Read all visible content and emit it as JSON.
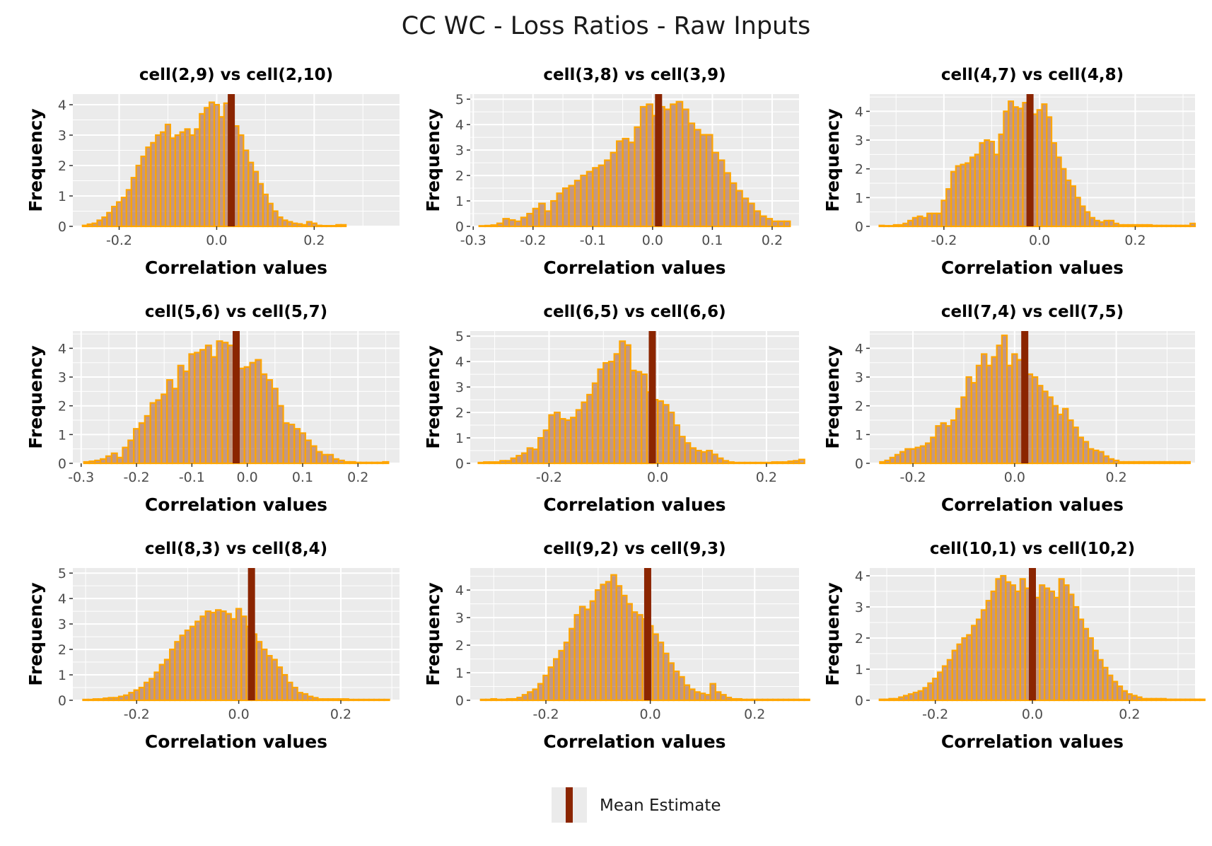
{
  "title": "CC WC - Loss Ratios - Raw Inputs",
  "legend": {
    "label": "Mean Estimate",
    "color": "#8b2500",
    "position": "bottom"
  },
  "colors": {
    "bar_fill": "#a0522d",
    "bar_outline": "#ffa500",
    "mean_line": "#8b2500",
    "panel_bg": "#ebebeb",
    "grid": "#ffffff"
  },
  "chart_data": [
    {
      "type": "bar",
      "title": "cell(2,9) vs cell(2,10)",
      "xlabel": "Correlation values",
      "ylabel": "Frequency",
      "xlim": [
        -0.295,
        0.375
      ],
      "ylim": [
        0,
        4.35
      ],
      "xticks": [
        -0.2,
        0.0,
        0.2
      ],
      "yticks": [
        0,
        1,
        2,
        3,
        4
      ],
      "bin_start": -0.275,
      "bin_width": 0.01,
      "counts": [
        0.03,
        0.07,
        0.1,
        0.2,
        0.3,
        0.45,
        0.65,
        0.8,
        0.95,
        1.2,
        1.6,
        2.0,
        2.3,
        2.6,
        2.75,
        3.0,
        3.1,
        3.35,
        2.9,
        3.0,
        3.1,
        3.2,
        3.0,
        3.2,
        3.7,
        3.9,
        4.08,
        4.0,
        3.6,
        4.05,
        3.65,
        3.3,
        3.0,
        2.5,
        2.1,
        1.8,
        1.4,
        1.05,
        0.75,
        0.5,
        0.3,
        0.2,
        0.15,
        0.1,
        0.08,
        0.05,
        0.15,
        0.1,
        0.03,
        0.02,
        0.02,
        0.02,
        0.05,
        0.05
      ],
      "mean": 0.03
    },
    {
      "type": "bar",
      "title": "cell(3,8) vs cell(3,9)",
      "xlabel": "Correlation values",
      "ylabel": "Frequency",
      "xlim": [
        -0.305,
        0.245
      ],
      "ylim": [
        0,
        5.2
      ],
      "xticks": [
        -0.3,
        -0.2,
        -0.1,
        0.0,
        0.1,
        0.2
      ],
      "yticks": [
        0,
        1,
        2,
        3,
        4,
        5
      ],
      "bin_start": -0.29,
      "bin_width": 0.01,
      "counts": [
        0.02,
        0.03,
        0.05,
        0.12,
        0.3,
        0.25,
        0.2,
        0.35,
        0.5,
        0.7,
        0.9,
        0.6,
        1.0,
        1.3,
        1.5,
        1.6,
        1.8,
        2.0,
        2.15,
        2.3,
        2.4,
        2.6,
        2.9,
        3.35,
        3.45,
        3.3,
        3.9,
        4.7,
        4.8,
        4.35,
        4.7,
        4.6,
        4.8,
        4.9,
        4.6,
        4.05,
        3.8,
        3.6,
        3.6,
        2.9,
        2.6,
        2.1,
        1.7,
        1.4,
        1.1,
        0.9,
        0.6,
        0.4,
        0.3,
        0.2,
        0.2,
        0.2
      ],
      "mean": 0.01
    },
    {
      "type": "bar",
      "title": "cell(4,7) vs cell(4,8)",
      "xlabel": "Correlation values",
      "ylabel": "Frequency",
      "xlim": [
        -0.355,
        0.325
      ],
      "ylim": [
        0,
        4.6
      ],
      "xticks": [
        -0.2,
        0.0,
        0.2
      ],
      "yticks": [
        0,
        1,
        2,
        3,
        4
      ],
      "bin_start": -0.335,
      "bin_width": 0.01,
      "counts": [
        0.03,
        0.02,
        0.02,
        0.05,
        0.05,
        0.1,
        0.2,
        0.3,
        0.35,
        0.3,
        0.45,
        0.45,
        0.45,
        0.9,
        1.3,
        1.9,
        2.1,
        2.15,
        2.2,
        2.4,
        2.5,
        2.9,
        3.0,
        2.95,
        2.5,
        3.2,
        4.0,
        4.35,
        4.15,
        4.1,
        4.3,
        3.9,
        3.9,
        4.05,
        4.25,
        3.8,
        2.9,
        2.4,
        2.0,
        1.6,
        1.4,
        1.0,
        0.7,
        0.5,
        0.3,
        0.2,
        0.15,
        0.2,
        0.2,
        0.1,
        0.05,
        0.05,
        0.05,
        0.05,
        0.05,
        0.05,
        0.05,
        0.03,
        0.03,
        0.03,
        0.03,
        0.03,
        0.03,
        0.03,
        0.03,
        0.1
      ],
      "mean": -0.02
    },
    {
      "type": "bar",
      "title": "cell(5,6) vs cell(5,7)",
      "xlabel": "Correlation values",
      "ylabel": "Frequency",
      "xlim": [
        -0.315,
        0.275
      ],
      "ylim": [
        0,
        4.6
      ],
      "xticks": [
        -0.3,
        -0.2,
        -0.1,
        0.0,
        0.1,
        0.2
      ],
      "yticks": [
        0,
        1,
        2,
        3,
        4
      ],
      "bin_start": -0.295,
      "bin_width": 0.01,
      "counts": [
        0.05,
        0.07,
        0.1,
        0.15,
        0.25,
        0.35,
        0.2,
        0.55,
        0.8,
        1.2,
        1.4,
        1.65,
        2.1,
        2.2,
        2.4,
        2.9,
        2.6,
        3.4,
        3.2,
        3.8,
        3.85,
        3.95,
        4.1,
        3.7,
        4.25,
        4.2,
        4.1,
        3.55,
        3.3,
        3.35,
        3.5,
        3.6,
        3.1,
        2.9,
        2.6,
        2.0,
        1.4,
        1.35,
        1.2,
        1.05,
        0.8,
        0.6,
        0.4,
        0.3,
        0.3,
        0.15,
        0.1,
        0.05,
        0.05,
        0.03,
        0.03,
        0.03,
        0.03,
        0.03,
        0.05
      ],
      "mean": -0.02
    },
    {
      "type": "bar",
      "title": "cell(6,5) vs cell(6,6)",
      "xlabel": "Correlation values",
      "ylabel": "Frequency",
      "xlim": [
        -0.345,
        0.26
      ],
      "ylim": [
        0,
        5.2
      ],
      "xticks": [
        -0.2,
        0.0,
        0.2
      ],
      "yticks": [
        0,
        1,
        2,
        3,
        4,
        5
      ],
      "bin_start": -0.33,
      "bin_width": 0.01,
      "counts": [
        0.03,
        0.05,
        0.05,
        0.05,
        0.1,
        0.1,
        0.2,
        0.3,
        0.4,
        0.6,
        0.55,
        1.0,
        1.3,
        1.9,
        2.0,
        1.75,
        1.7,
        1.8,
        2.1,
        2.4,
        2.7,
        3.15,
        3.7,
        3.95,
        4.0,
        4.3,
        4.8,
        4.65,
        3.65,
        3.6,
        3.5,
        2.8,
        2.5,
        2.45,
        2.3,
        2.0,
        1.5,
        1.05,
        0.8,
        0.6,
        0.5,
        0.45,
        0.5,
        0.35,
        0.2,
        0.1,
        0.05,
        0.03,
        0.03,
        0.03,
        0.03,
        0.03,
        0.03,
        0.03,
        0.05,
        0.05,
        0.05,
        0.08,
        0.1,
        0.15
      ],
      "mean": -0.01
    },
    {
      "type": "bar",
      "title": "cell(7,4) vs cell(7,5)",
      "xlabel": "Correlation values",
      "ylabel": "Frequency",
      "xlim": [
        -0.285,
        0.355
      ],
      "ylim": [
        0,
        4.6
      ],
      "xticks": [
        -0.2,
        0.0,
        0.2
      ],
      "yticks": [
        0,
        1,
        2,
        3,
        4
      ],
      "bin_start": -0.265,
      "bin_width": 0.01,
      "counts": [
        0.05,
        0.1,
        0.2,
        0.3,
        0.4,
        0.5,
        0.5,
        0.55,
        0.6,
        0.7,
        0.9,
        1.3,
        1.4,
        1.3,
        1.5,
        1.9,
        2.3,
        3.0,
        2.8,
        3.4,
        3.8,
        3.4,
        3.7,
        4.1,
        4.45,
        3.4,
        3.8,
        3.6,
        3.3,
        3.1,
        3.0,
        2.7,
        2.5,
        2.3,
        2.0,
        1.7,
        1.9,
        1.5,
        1.25,
        0.9,
        0.75,
        0.5,
        0.45,
        0.4,
        0.25,
        0.15,
        0.1,
        0.05,
        0.05,
        0.05,
        0.05,
        0.05,
        0.05,
        0.05,
        0.05,
        0.05,
        0.05,
        0.05,
        0.05,
        0.05,
        0.05
      ],
      "mean": 0.02
    },
    {
      "type": "bar",
      "title": "cell(8,3) vs cell(8,4)",
      "xlabel": "Correlation values",
      "ylabel": "Frequency",
      "xlim": [
        -0.325,
        0.315
      ],
      "ylim": [
        0,
        5.2
      ],
      "xticks": [
        -0.2,
        0.0,
        0.2
      ],
      "yticks": [
        0,
        1,
        2,
        3,
        4,
        5
      ],
      "bin_start": -0.305,
      "bin_width": 0.01,
      "counts": [
        0.03,
        0.03,
        0.05,
        0.05,
        0.08,
        0.1,
        0.1,
        0.15,
        0.2,
        0.3,
        0.4,
        0.5,
        0.7,
        0.85,
        1.1,
        1.4,
        1.6,
        2.0,
        2.3,
        2.55,
        2.75,
        2.9,
        3.1,
        3.3,
        3.5,
        3.45,
        3.55,
        3.5,
        3.4,
        3.2,
        3.6,
        3.3,
        2.9,
        2.6,
        2.3,
        2.0,
        1.75,
        1.6,
        1.3,
        1.0,
        0.7,
        0.5,
        0.3,
        0.25,
        0.15,
        0.1,
        0.05,
        0.05,
        0.05,
        0.05,
        0.05,
        0.05,
        0.03,
        0.03,
        0.03,
        0.03,
        0.03,
        0.03,
        0.03,
        0.03
      ],
      "mean": 0.025
    },
    {
      "type": "bar",
      "title": "cell(9,2) vs cell(9,3)",
      "xlabel": "Correlation values",
      "ylabel": "Frequency",
      "xlim": [
        -0.345,
        0.285
      ],
      "ylim": [
        0,
        4.8
      ],
      "xticks": [
        -0.2,
        0.0,
        0.2
      ],
      "yticks": [
        0,
        1,
        2,
        3,
        4
      ],
      "bin_start": -0.325,
      "bin_width": 0.01,
      "counts": [
        0.03,
        0.03,
        0.05,
        0.03,
        0.03,
        0.05,
        0.05,
        0.1,
        0.2,
        0.3,
        0.4,
        0.6,
        0.9,
        1.2,
        1.5,
        1.8,
        2.1,
        2.6,
        3.1,
        3.4,
        3.3,
        3.6,
        4.0,
        4.2,
        4.3,
        4.55,
        4.15,
        3.8,
        3.5,
        3.2,
        3.1,
        2.95,
        2.7,
        2.4,
        2.1,
        1.7,
        1.35,
        1.05,
        0.85,
        0.55,
        0.4,
        0.3,
        0.25,
        0.2,
        0.6,
        0.3,
        0.2,
        0.1,
        0.05,
        0.05,
        0.03,
        0.03,
        0.03,
        0.03,
        0.03,
        0.03,
        0.03,
        0.03,
        0.03,
        0.03,
        0.03,
        0.03,
        0.03
      ],
      "mean": -0.005
    },
    {
      "type": "bar",
      "title": "cell(10,1) vs cell(10,2)",
      "xlabel": "Correlation values",
      "ylabel": "Frequency",
      "xlim": [
        -0.335,
        0.335
      ],
      "ylim": [
        0,
        4.25
      ],
      "xticks": [
        -0.2,
        0.0,
        0.2
      ],
      "yticks": [
        0,
        1,
        2,
        3,
        4
      ],
      "bin_start": -0.315,
      "bin_width": 0.01,
      "counts": [
        0.03,
        0.03,
        0.05,
        0.05,
        0.1,
        0.15,
        0.2,
        0.25,
        0.3,
        0.4,
        0.55,
        0.7,
        0.9,
        1.1,
        1.3,
        1.6,
        1.8,
        2.0,
        2.1,
        2.4,
        2.6,
        2.9,
        3.2,
        3.5,
        3.9,
        4.0,
        3.8,
        3.7,
        3.5,
        3.9,
        3.6,
        3.4,
        3.3,
        3.7,
        3.6,
        3.5,
        3.3,
        3.9,
        3.7,
        3.4,
        3.0,
        2.6,
        2.3,
        2.0,
        1.6,
        1.3,
        1.05,
        0.8,
        0.6,
        0.45,
        0.3,
        0.2,
        0.15,
        0.1,
        0.05,
        0.05,
        0.05,
        0.05,
        0.05,
        0.03,
        0.03,
        0.03,
        0.03,
        0.03,
        0.03,
        0.03,
        0.03
      ],
      "mean": 0.0
    }
  ]
}
